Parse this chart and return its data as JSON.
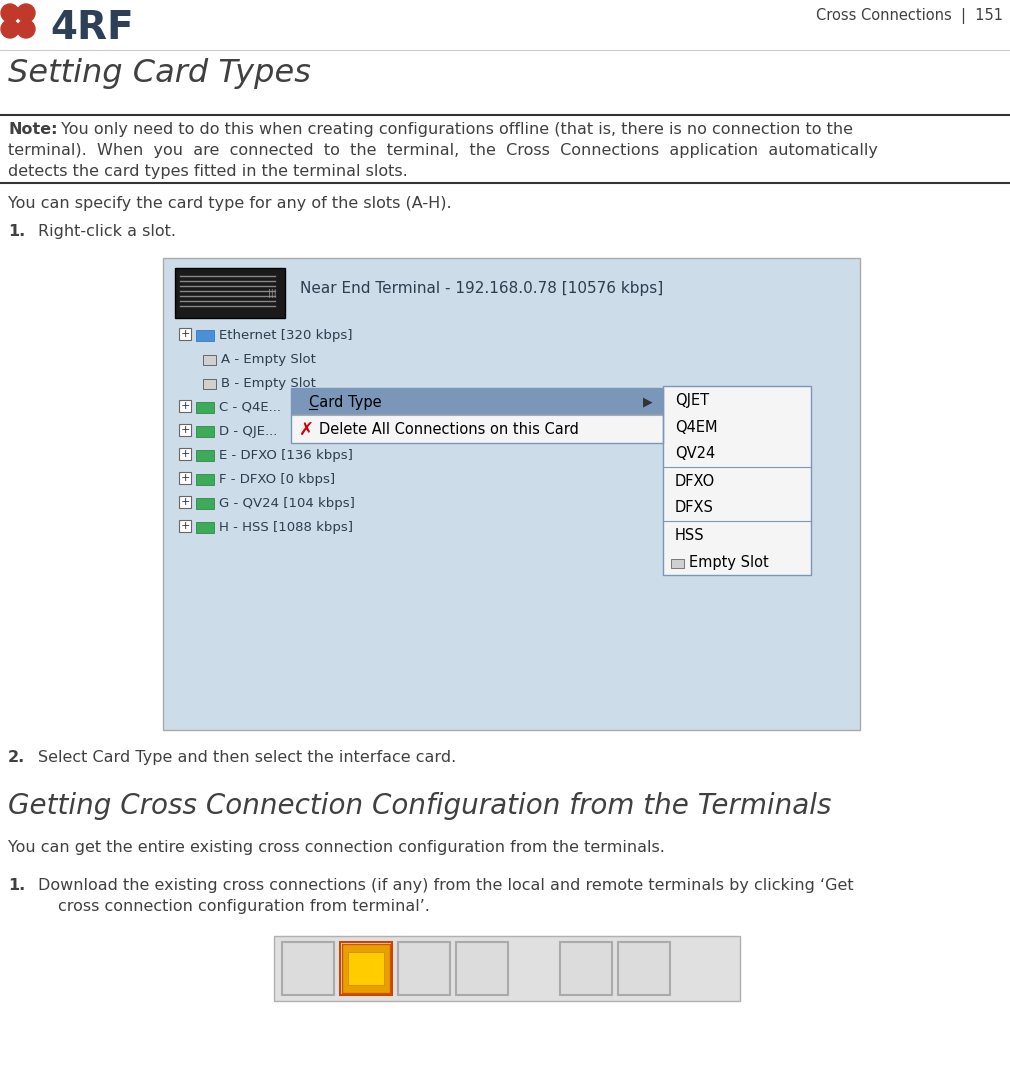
{
  "bg_color": "#ffffff",
  "header_text": "Cross Connections  |  151",
  "title": "Setting Card Types",
  "note_bold": "Note:",
  "note_line1": " You only need to do this when creating configurations offline (that is, there is no connection to the",
  "note_line2": "terminal).  When  you  are  connected  to  the  terminal,  the  Cross  Connections  application  automatically",
  "note_line3": "detects the card types fitted in the terminal slots.",
  "para1": "You can specify the card type for any of the slots (A-H).",
  "step1_text": "Right-click a slot.",
  "step2_text": "Select Card Type and then select the interface card.",
  "section2_title": "Getting Cross Connection Configuration from the Terminals",
  "section2_para": "You can get the entire existing cross connection configuration from the terminals.",
  "step3_line1": "Download the existing cross connections (if any) from the local and remote terminals by clicking ‘Get",
  "step3_line2": "cross connection configuration from terminal’.",
  "screenshot_bg": "#ccdce8",
  "screenshot_title": "Near End Terminal - 192.168.0.78 [10576 kbps]",
  "tree_labels": [
    [
      "Ethernet [320 kbps]",
      false,
      "net"
    ],
    [
      "A - Empty Slot",
      true,
      "empty"
    ],
    [
      "B - Empty Slot",
      true,
      "empty"
    ],
    [
      "C - Q4E...",
      false,
      "card"
    ],
    [
      "D - QJE...",
      false,
      "card"
    ],
    [
      "E - DFXO [136 kbps]",
      false,
      "card"
    ],
    [
      "F - DFXO [0 kbps]",
      false,
      "card"
    ],
    [
      "G - QV24 [104 kbps]",
      false,
      "card"
    ],
    [
      "H - HSS [1088 kbps]",
      false,
      "card"
    ]
  ],
  "submenu_items": [
    "QJET",
    "Q4EM",
    "QV24",
    "DFXO",
    "DFXS",
    "HSS",
    "Empty Slot"
  ],
  "submenu_dividers_after": [
    2,
    4
  ],
  "font_color": "#404040",
  "title_color": "#404040",
  "header_color": "#404040",
  "logo_color": "#2e4057",
  "dot_color": "#c0392b",
  "note_bg": "#ffffff",
  "ctx_menu_highlight": "#7a96b8",
  "ctx_menu_bg": "#f5f5f5",
  "sub_menu_bg": "#f5f5f5",
  "sub_menu_border": "#7a96b8",
  "screenshot_border": "#aaaaaa",
  "tree_text_color": "#2c3e50",
  "section2_title_color": "#404040",
  "toolbar_bg": "#e8e8e8",
  "toolbar_border": "#bbbbbb"
}
